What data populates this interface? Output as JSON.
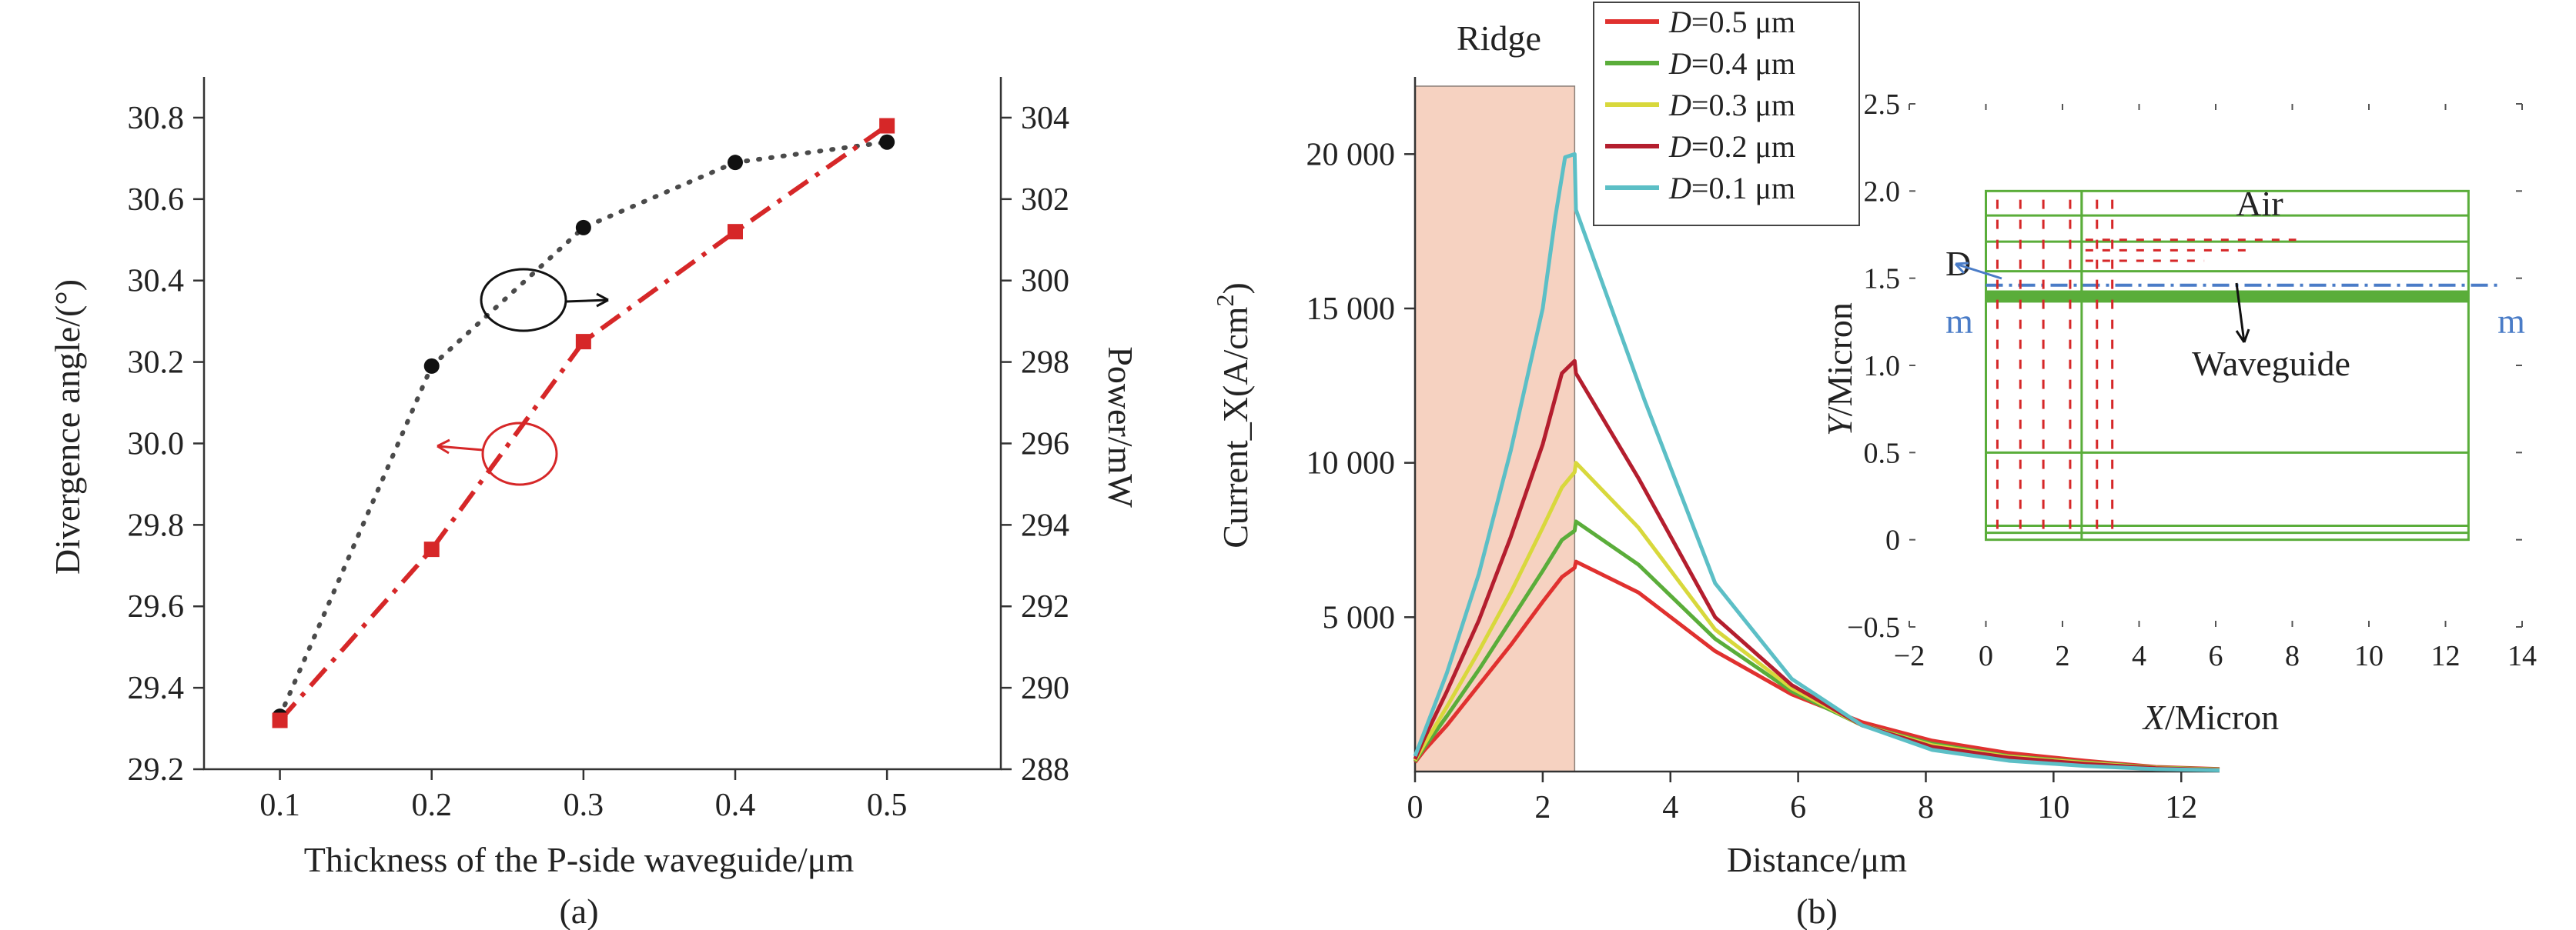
{
  "chart_data": [
    {
      "type": "line",
      "caption": "(a)",
      "xlabel": "Thickness of the P-side waveguide/μm",
      "ylabel": "Divergence angle/(°)",
      "y2label": "Power/mW",
      "x": [
        0.1,
        0.2,
        0.3,
        0.4,
        0.5
      ],
      "x_ticks": [
        "0.1",
        "0.2",
        "0.3",
        "0.4",
        "0.5"
      ],
      "xlim": [
        0.05,
        0.575
      ],
      "ylim": [
        29.2,
        30.9
      ],
      "y_ticks": [
        "29.2",
        "29.4",
        "29.6",
        "29.8",
        "30.0",
        "30.2",
        "30.4",
        "30.6",
        "30.8"
      ],
      "y2lim": [
        288,
        305
      ],
      "y2_ticks": [
        "288",
        "290",
        "292",
        "294",
        "296",
        "298",
        "300",
        "302",
        "304"
      ],
      "series": [
        {
          "axis": "left",
          "values": [
            29.33,
            30.19,
            30.53,
            30.69,
            30.74
          ],
          "color": "#4a4a4a",
          "style": "dotted",
          "marker": "circle"
        },
        {
          "axis": "right",
          "values": [
            289.2,
            293.4,
            298.5,
            301.2,
            303.8
          ],
          "color": "#d62728",
          "style": "dashdot",
          "marker": "square"
        }
      ],
      "annotations": [
        {
          "type": "ellipse-arrow",
          "points_to": "right-axis",
          "color": "#111111"
        },
        {
          "type": "ellipse-arrow",
          "points_to": "left-axis",
          "color": "#d62728"
        }
      ]
    },
    {
      "type": "line",
      "caption": "(b)",
      "xlabel": "Distance/μm",
      "ylabel_main": "Current_X(A/cm",
      "ylabel_sup": "2",
      "ylabel_end": ")",
      "xlim": [
        0,
        12.6
      ],
      "x_ticks": [
        "0",
        "2",
        "4",
        "6",
        "8",
        "10",
        "12"
      ],
      "ylim": [
        0,
        22500
      ],
      "y_ticks": [
        "5 000",
        "10 000",
        "15 000",
        "20 000"
      ],
      "region_label": "Ridge",
      "ridge_range": [
        0,
        2.5
      ],
      "ridge_color": "#f6d2c1",
      "legend_position": "top-center",
      "series": [
        {
          "name": "D=0.5 μm",
          "label_var": "D",
          "label_rest": "=0.5 μm",
          "color": "#e0312f",
          "x": [
            0,
            0.15,
            0.5,
            1.0,
            1.5,
            2.0,
            2.3,
            2.5,
            2.52,
            3.5,
            4.7,
            5.9,
            7.0,
            8.1,
            9.3,
            10.5,
            11.6,
            12.6
          ],
          "y": [
            300,
            700,
            1500,
            2800,
            4100,
            5500,
            6300,
            6600,
            6800,
            5800,
            3900,
            2500,
            1600,
            1000,
            600,
            350,
            150,
            80
          ]
        },
        {
          "name": "D=0.4 μm",
          "label_var": "D",
          "label_rest": "=0.4 μm",
          "color": "#5aad3a",
          "x": [
            0,
            0.15,
            0.5,
            1.0,
            1.5,
            2.0,
            2.3,
            2.5,
            2.52,
            3.5,
            4.7,
            5.9,
            7.0,
            8.1,
            9.3,
            10.5,
            11.6,
            12.6
          ],
          "y": [
            330,
            800,
            1800,
            3300,
            4900,
            6500,
            7500,
            7800,
            8100,
            6700,
            4300,
            2600,
            1500,
            900,
            500,
            300,
            130,
            70
          ]
        },
        {
          "name": "D=0.3 μm",
          "label_var": "D",
          "label_rest": "=0.3 μm",
          "color": "#d8d83c",
          "x": [
            0,
            0.15,
            0.5,
            1.0,
            1.5,
            2.0,
            2.3,
            2.5,
            2.52,
            3.5,
            4.7,
            5.9,
            7.0,
            8.1,
            9.3,
            10.5,
            11.6,
            12.6
          ],
          "y": [
            360,
            900,
            2100,
            3900,
            5800,
            7900,
            9200,
            9700,
            10000,
            7900,
            4600,
            2700,
            1500,
            850,
            480,
            280,
            120,
            60
          ]
        },
        {
          "name": "D=0.2 μm",
          "label_var": "D",
          "label_rest": "=0.2 μm",
          "color": "#b41e2e",
          "x": [
            0,
            0.15,
            0.5,
            1.0,
            1.5,
            2.0,
            2.3,
            2.5,
            2.52,
            3.5,
            4.7,
            5.9,
            7.0,
            8.1,
            9.3,
            10.5,
            11.6,
            12.6
          ],
          "y": [
            400,
            1100,
            2600,
            4900,
            7600,
            10600,
            12900,
            13300,
            12900,
            9500,
            5000,
            2800,
            1500,
            800,
            450,
            250,
            110,
            50
          ]
        },
        {
          "name": "D=0.1 μm",
          "label_var": "D",
          "label_rest": "=0.1 μm",
          "color": "#5cbfc6",
          "x": [
            0,
            0.15,
            0.5,
            1.0,
            1.5,
            2.0,
            2.2,
            2.35,
            2.5,
            2.52,
            3.6,
            4.7,
            5.9,
            7.0,
            8.1,
            9.3,
            10.5,
            11.6,
            12.6
          ],
          "y": [
            500,
            1300,
            3200,
            6400,
            10400,
            15000,
            18000,
            19900,
            20000,
            18200,
            12000,
            6100,
            3000,
            1500,
            700,
            350,
            180,
            80,
            40
          ]
        }
      ]
    },
    {
      "type": "diagram-inset",
      "xlabel_var": "X",
      "xlabel_rest": "/Micron",
      "ylabel_var": "Y",
      "ylabel_rest": "/Micron",
      "xlim": [
        -2,
        14
      ],
      "x_ticks": [
        "−2",
        "0",
        "2",
        "4",
        "6",
        "8",
        "10",
        "12",
        "14"
      ],
      "ylim": [
        -0.5,
        2.5
      ],
      "y_ticks": [
        "−0.5",
        "0",
        "0.5",
        "1.0",
        "1.5",
        "2.0",
        "2.5"
      ],
      "labels": {
        "air": "Air",
        "waveguide": "Waveguide",
        "d": "D",
        "m_left": "m",
        "m_right": "m"
      },
      "mesh_color": "#5aad3a",
      "arrow_color": "#d62728",
      "dash_color": "#4a7cc7"
    }
  ]
}
